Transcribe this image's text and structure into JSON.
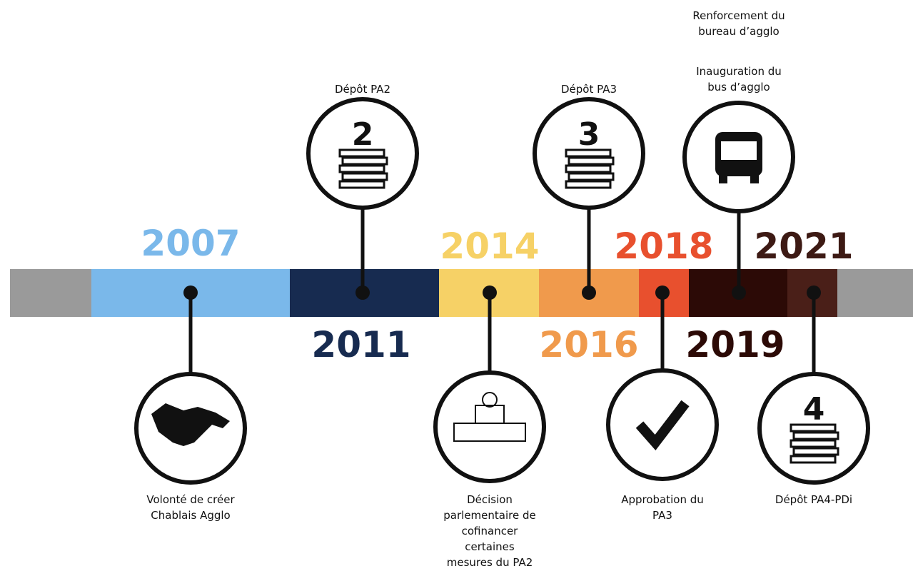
{
  "years": [
    "2007",
    "2011",
    "2014",
    "2016",
    "2018",
    "2019",
    "2021"
  ],
  "events": [
    {
      "lines": [
        "Volonté de créer",
        "Chablais Agglo"
      ]
    },
    {
      "lines": [
        "Dépôt PA2"
      ],
      "icon_text": "2"
    },
    {
      "lines": [
        "Décision",
        "parlementaire de",
        "cofinancer",
        "certaines",
        "mesures du PA2"
      ]
    },
    {
      "lines": [
        "Dépôt PA3"
      ],
      "icon_text": "3"
    },
    {
      "lines": [
        "Approbation du",
        "PA3"
      ]
    },
    {
      "lines": [
        "Renforcement du",
        "bureau d’agglo"
      ],
      "lines2": [
        "Inauguration du",
        "bus d’agglo"
      ]
    },
    {
      "lines": [
        "Dépôt PA4-PDi"
      ],
      "icon_text": "4"
    }
  ]
}
